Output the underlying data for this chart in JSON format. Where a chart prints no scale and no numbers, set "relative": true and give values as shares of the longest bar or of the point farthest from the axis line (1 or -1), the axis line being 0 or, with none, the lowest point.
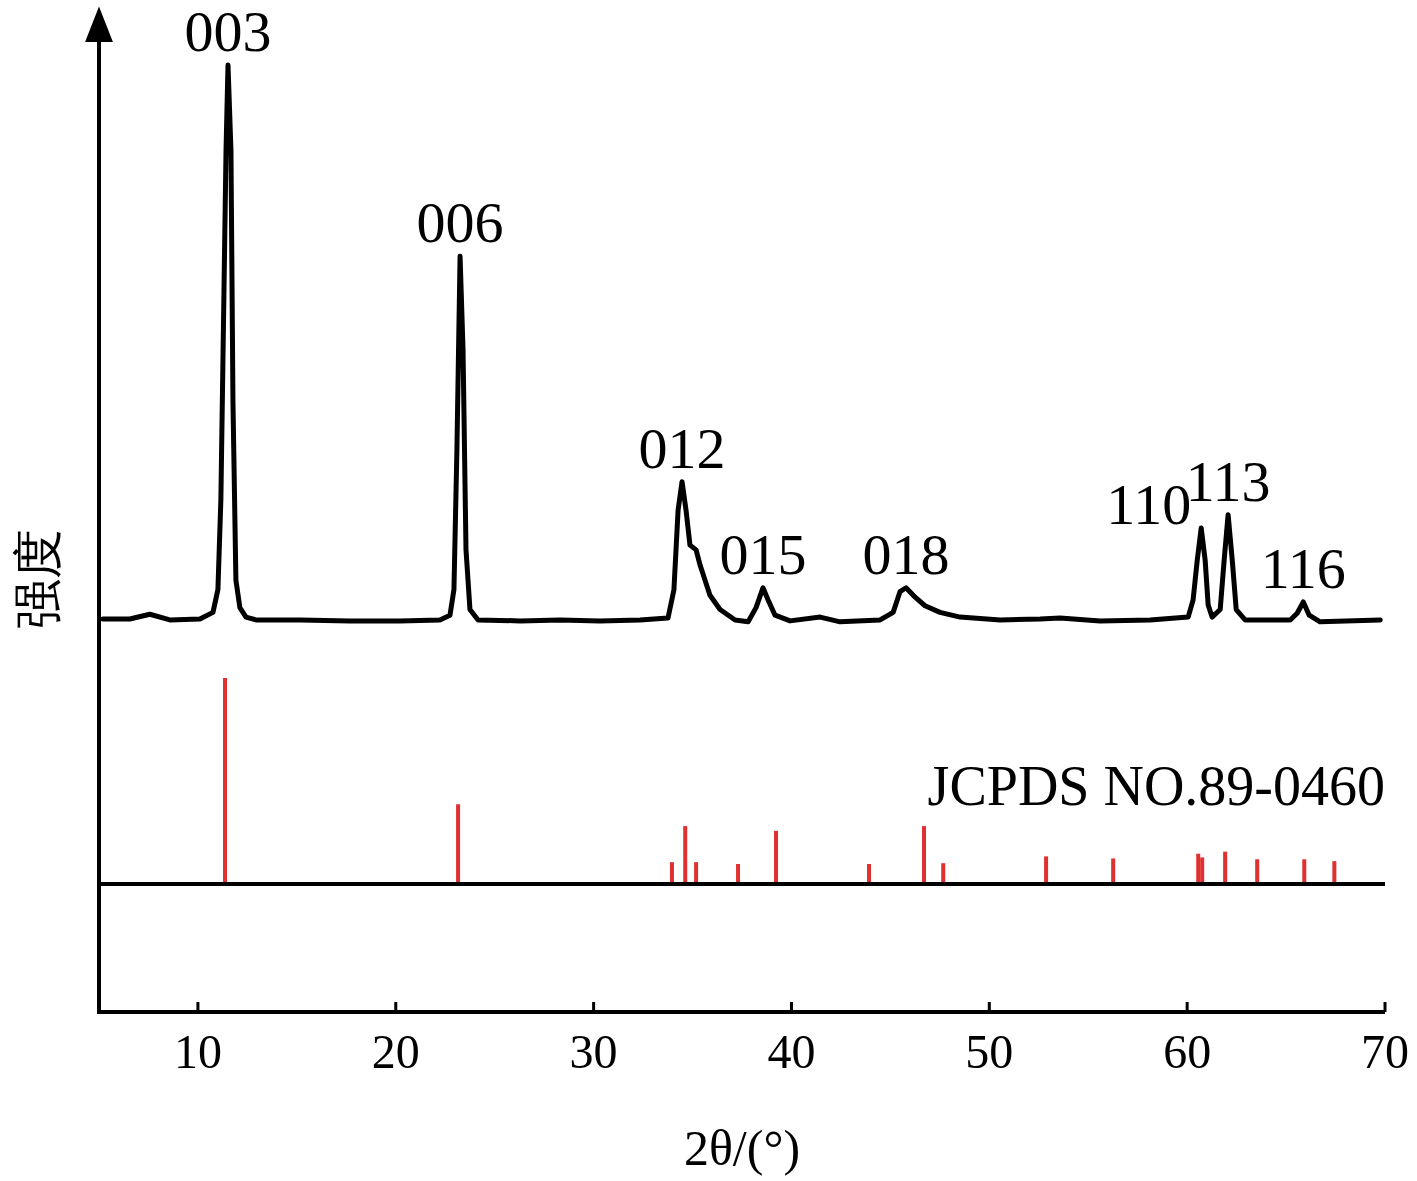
{
  "chart_data": [
    {
      "type": "line",
      "relative": true,
      "xlabel": "2θ/(°)",
      "ylabel": "强度",
      "xlim": [
        5,
        70
      ],
      "xticks": [
        10,
        20,
        30,
        40,
        50,
        60,
        70
      ],
      "series": [
        {
          "color": "#000000",
          "x": [
            5.2,
            6.56,
            7.57,
            8.58,
            10.1,
            10.76,
            11.01,
            11.16,
            11.31,
            11.42,
            11.52,
            11.67,
            11.77,
            11.92,
            12.12,
            12.43,
            12.93,
            15.16,
            17.68,
            20.21,
            22.23,
            22.74,
            22.94,
            23.09,
            23.25,
            23.4,
            23.55,
            23.75,
            24.16,
            26.28,
            28.3,
            30.32,
            32.35,
            33.76,
            34.06,
            34.27,
            34.47,
            34.67,
            34.87,
            35.18,
            35.38,
            35.88,
            36.39,
            37.15,
            37.81,
            38.21,
            38.56,
            38.82,
            39.17,
            39.93,
            41.45,
            42.46,
            44.48,
            45.14,
            45.49,
            45.79,
            46.25,
            46.75,
            47.51,
            48.52,
            50.55,
            52.57,
            53.58,
            55.6,
            58.13,
            60.05,
            60.3,
            60.51,
            60.71,
            60.91,
            61.06,
            61.26,
            61.67,
            61.87,
            62.07,
            62.28,
            62.48,
            62.93,
            65.21,
            65.56,
            65.87,
            66.17,
            66.72,
            69.76
          ],
          "values": [
            0.415,
            0.415,
            0.42,
            0.414,
            0.415,
            0.422,
            0.446,
            0.541,
            0.752,
            0.91,
            1.0,
            0.91,
            0.646,
            0.456,
            0.427,
            0.417,
            0.414,
            0.414,
            0.413,
            0.413,
            0.414,
            0.419,
            0.446,
            0.593,
            0.798,
            0.699,
            0.488,
            0.425,
            0.414,
            0.413,
            0.414,
            0.413,
            0.414,
            0.416,
            0.446,
            0.53,
            0.56,
            0.53,
            0.493,
            0.488,
            0.472,
            0.44,
            0.425,
            0.414,
            0.412,
            0.427,
            0.448,
            0.435,
            0.419,
            0.413,
            0.417,
            0.412,
            0.414,
            0.422,
            0.444,
            0.448,
            0.438,
            0.429,
            0.422,
            0.417,
            0.414,
            0.415,
            0.416,
            0.413,
            0.414,
            0.417,
            0.435,
            0.477,
            0.511,
            0.477,
            0.43,
            0.417,
            0.425,
            0.477,
            0.525,
            0.477,
            0.425,
            0.414,
            0.414,
            0.421,
            0.433,
            0.419,
            0.412,
            0.414
          ]
        }
      ],
      "annotations": [
        {
          "text": "003",
          "x": 11.52,
          "y": 1.0
        },
        {
          "text": "006",
          "x": 23.25,
          "y": 0.798
        },
        {
          "text": "012",
          "x": 34.47,
          "y": 0.56
        },
        {
          "text": "015",
          "x": 38.56,
          "y": 0.448
        },
        {
          "text": "018",
          "x": 45.79,
          "y": 0.448
        },
        {
          "text": "110",
          "x": 60.71,
          "y": 0.511
        },
        {
          "text": "113",
          "x": 62.07,
          "y": 0.525
        },
        {
          "text": "116",
          "x": 65.87,
          "y": 0.433
        }
      ]
    },
    {
      "type": "bar",
      "relative": true,
      "xlim": [
        5,
        70
      ],
      "series": [
        {
          "color": "#e03030",
          "x": [
            11.37,
            23.15,
            33.96,
            34.63,
            35.18,
            37.3,
            39.22,
            43.92,
            46.7,
            47.67,
            52.87,
            56.26,
            60.56,
            60.76,
            61.92,
            63.54,
            65.92,
            67.44
          ],
          "values": [
            1.0,
            0.387,
            0.106,
            0.281,
            0.106,
            0.097,
            0.258,
            0.097,
            0.281,
            0.101,
            0.134,
            0.124,
            0.147,
            0.129,
            0.157,
            0.12,
            0.12,
            0.111
          ]
        }
      ],
      "annotations": [
        "JCPDS NO.89-0460"
      ]
    }
  ]
}
